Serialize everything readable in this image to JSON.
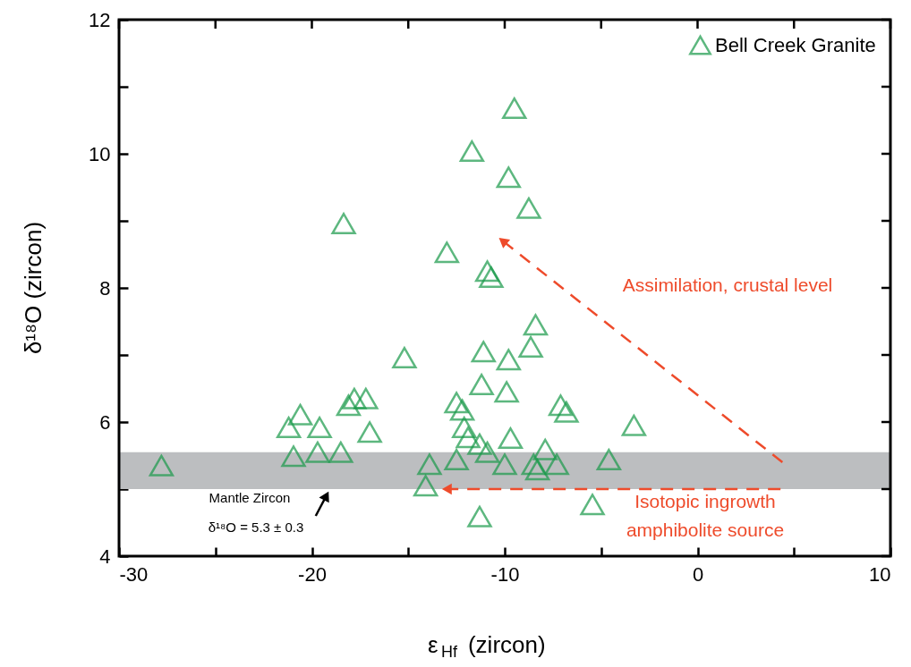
{
  "chart_data": {
    "type": "scatter",
    "xlabel": "ε$_{Hf}$ (zircon)",
    "ylabel": "δ¹⁸O (zircon)",
    "xlim": [
      -30,
      10
    ],
    "ylim": [
      4,
      12
    ],
    "xticks": [
      -30,
      {
        "value": -25,
        "label": null
      },
      -20,
      {
        "value": -15,
        "label": null
      },
      -10,
      {
        "value": -5,
        "label": null
      },
      0,
      {
        "value": 5,
        "label": null
      },
      10
    ],
    "yticks": [
      4,
      {
        "value": 5,
        "label": null
      },
      6,
      {
        "value": 7,
        "label": null
      },
      8,
      {
        "value": 9,
        "label": null
      },
      10,
      {
        "value": 11,
        "label": null
      },
      12
    ],
    "marker": "triangle",
    "legend": "top right",
    "grid": false,
    "series": [
      {
        "name": "Bell Creek Granite",
        "color": "#1a9a4a",
        "x": [
          -27.8,
          -20.95,
          -19.7,
          -18.5,
          -21.2,
          -20.6,
          -19.6,
          -18.1,
          -17.8,
          -17.2,
          -17.0,
          -13.9,
          -14.1,
          -12.5,
          -12.5,
          -12.2,
          -12.1,
          -11.9,
          -11.3,
          -10.9,
          -11.2,
          -9.9,
          -11.3,
          -10.0,
          -9.7,
          -8.5,
          -8.3,
          -7.9,
          -7.3,
          -7.1,
          -6.8,
          -5.45,
          -4.6,
          -3.3,
          -9.5,
          -11.7,
          -9.8,
          -8.75,
          -18.35,
          -13.0,
          -10.9,
          -10.7,
          -11.1,
          -9.8,
          -8.4,
          -8.65,
          -15.2
        ],
        "values": [
          5.35,
          5.49,
          5.55,
          5.55,
          5.92,
          6.11,
          5.92,
          6.25,
          6.35,
          6.35,
          5.85,
          5.37,
          5.05,
          5.44,
          6.29,
          6.18,
          5.92,
          5.77,
          5.67,
          5.55,
          6.56,
          6.45,
          4.59,
          5.37,
          5.76,
          5.37,
          5.29,
          5.59,
          5.37,
          6.25,
          6.15,
          4.77,
          5.44,
          5.95,
          10.68,
          10.04,
          9.65,
          9.19,
          8.96,
          8.53,
          8.25,
          8.16,
          7.05,
          6.93,
          7.45,
          7.12,
          6.96
        ]
      },
      {
        "type": "line",
        "line_style": "dashed",
        "color": "#ee4b2b",
        "x": [
          4.4,
          -10.1
        ],
        "values": [
          5.4,
          8.7
        ]
      },
      {
        "type": "line",
        "line_style": "dashed",
        "color": "#ee4b2b",
        "x": [
          4.3,
          -13.0
        ],
        "values": [
          5.0,
          5.0
        ]
      },
      {
        "type": "line",
        "line_style": "solid",
        "color": "#000000",
        "x": [
          -19.8,
          -19.25
        ],
        "values": [
          4.6,
          4.9
        ]
      }
    ],
    "bands": [
      {
        "axis": "y",
        "from": 5.0,
        "to": 5.55,
        "color": "#bcbec0"
      }
    ],
    "annotations": [
      "Mantle Zircon",
      "δ¹⁸O = 5.3 ± 0.3",
      "Assimilation, crustal level",
      "Isotopic ingrowth",
      "amphibolite source"
    ]
  }
}
